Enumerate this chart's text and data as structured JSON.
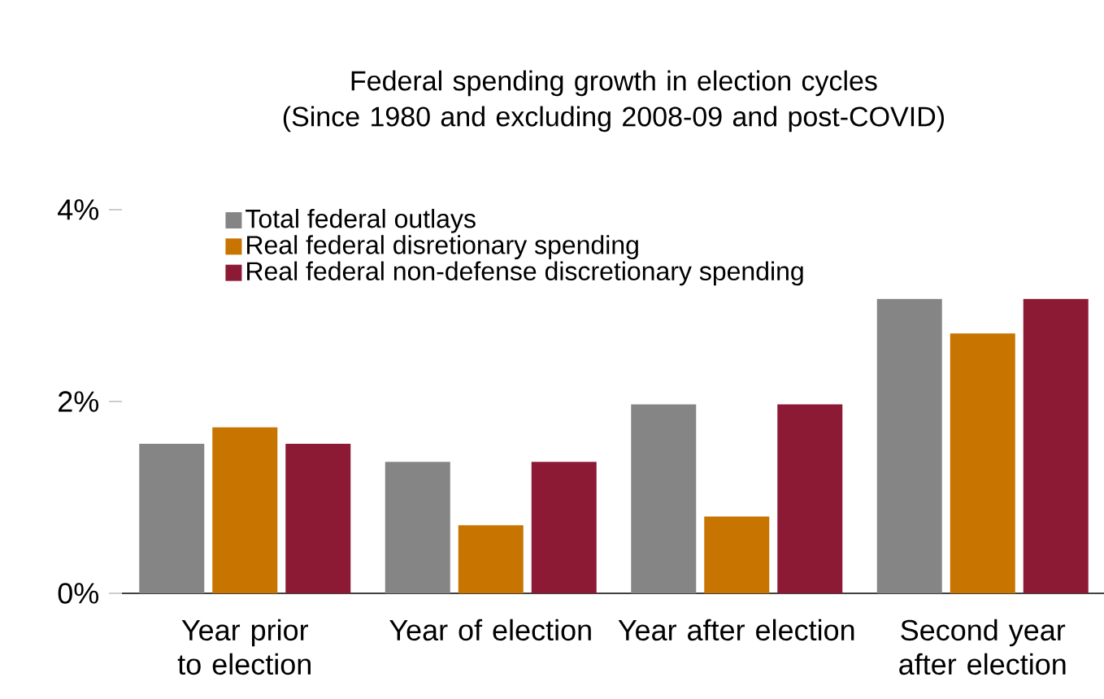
{
  "chart_data": {
    "type": "bar",
    "title": "Federal spending growth in election cycles",
    "subtitle": "(Since 1980 and excluding 2008-09 and post-COVID)",
    "categories": [
      "Year prior to election",
      "Year of election",
      "Year after election",
      "Second year after election"
    ],
    "series": [
      {
        "name": "Total federal outlays",
        "color": "#858585",
        "values": [
          1.56,
          1.37,
          1.97,
          3.07
        ]
      },
      {
        "name": "Real federal disretionary spending",
        "color": "#c77400",
        "values": [
          1.73,
          0.71,
          0.8,
          2.71
        ]
      },
      {
        "name": "Real federal non-defense discretionary spending",
        "color": "#8c1a34",
        "values": [
          1.56,
          1.37,
          1.97,
          3.07
        ]
      }
    ],
    "ylim": [
      0,
      4
    ],
    "yticks": [
      {
        "value": 0,
        "label": "0%"
      },
      {
        "value": 2,
        "label": "2%"
      },
      {
        "value": 4,
        "label": "4%"
      }
    ],
    "grid": false,
    "legend": "top left"
  }
}
